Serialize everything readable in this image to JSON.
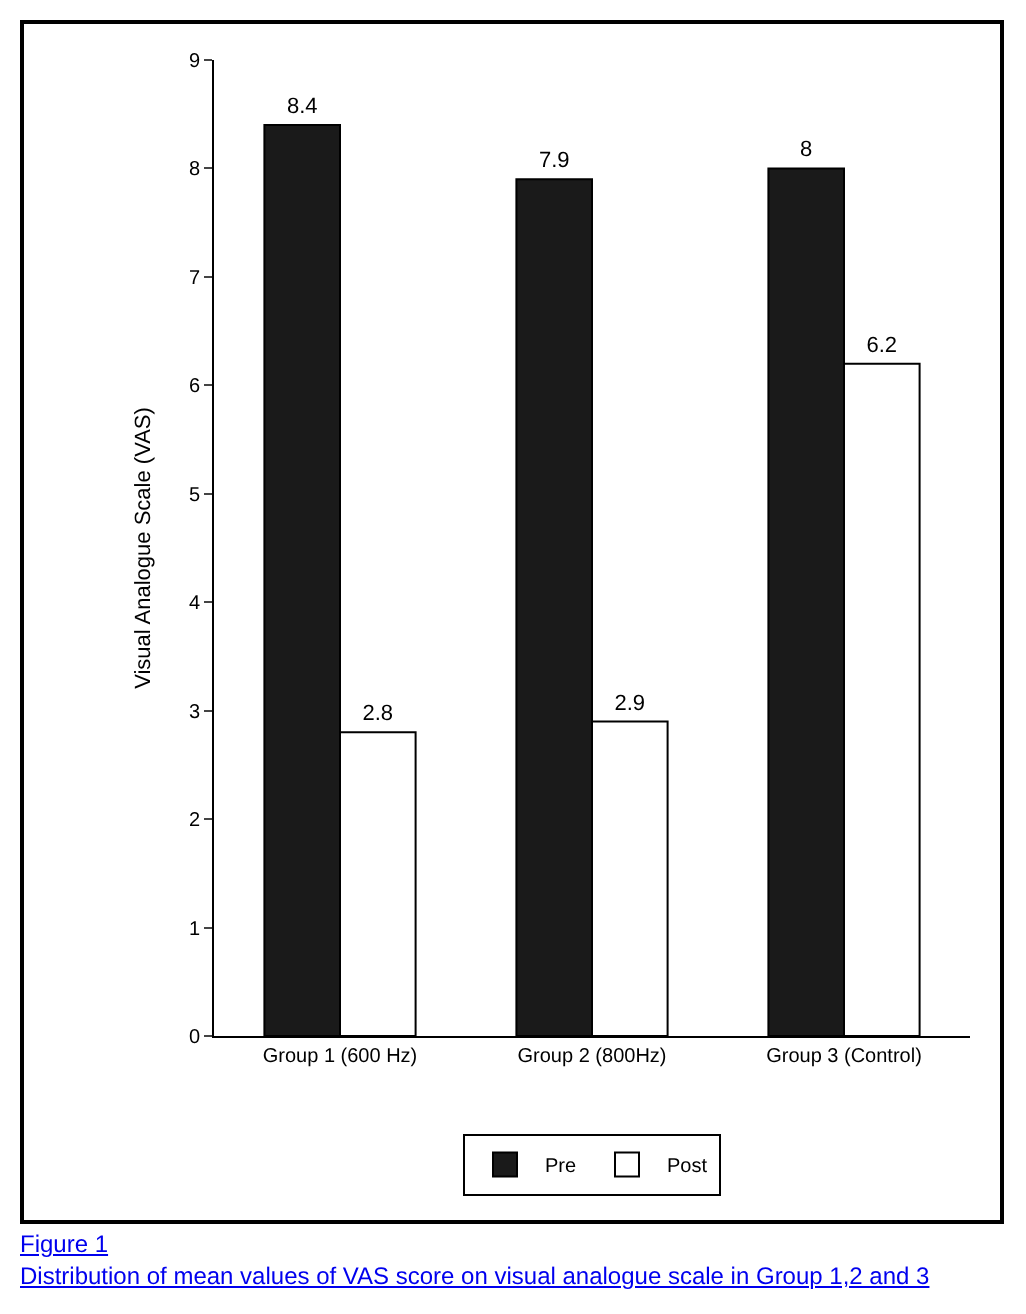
{
  "chart_data": {
    "type": "bar",
    "ylabel": "Visual Analogue Scale (VAS)",
    "categories": [
      "Group 1 (600 Hz)",
      "Group 2 (800Hz)",
      "Group 3 (Control)"
    ],
    "series": [
      {
        "name": "Pre",
        "color": "#1a1a1a",
        "values": [
          8.4,
          7.9,
          8
        ]
      },
      {
        "name": "Post",
        "color": "#ffffff",
        "values": [
          2.8,
          2.9,
          6.2
        ]
      }
    ],
    "ylim": [
      0,
      9
    ],
    "yticks": [
      0,
      1,
      2,
      3,
      4,
      5,
      6,
      7,
      8,
      9
    ],
    "grid": false,
    "legend": "bottom",
    "data_labels": true,
    "annotations": [
      "Figure 1",
      "Distribution of mean values of VAS score on visual analogue scale in Group 1,2 and 3"
    ]
  }
}
